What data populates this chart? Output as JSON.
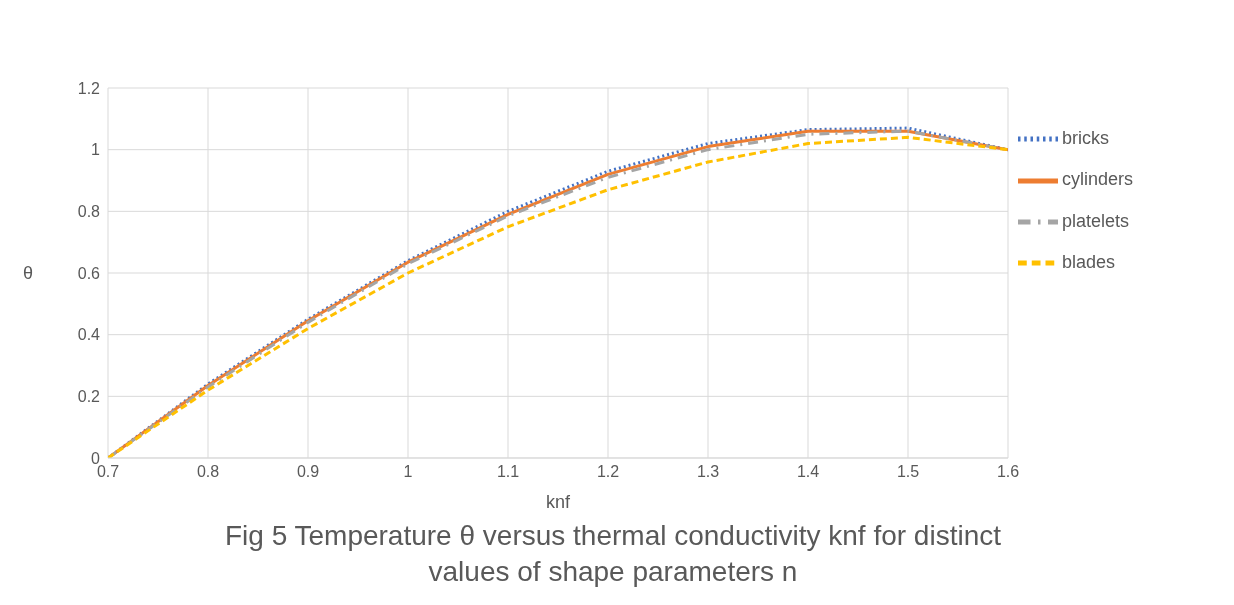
{
  "chart_data": {
    "type": "line",
    "title": "Fig 5 Temperature θ versus thermal conductivity knf for distinct values of shape parameters n",
    "xlabel": "knf",
    "ylabel": "θ",
    "x": [
      0.7,
      0.8,
      0.9,
      1.0,
      1.1,
      1.2,
      1.3,
      1.4,
      1.5,
      1.6
    ],
    "series": [
      {
        "name": "bricks",
        "color": "#4472c4",
        "line_style": "dotted",
        "values": [
          0,
          0.24,
          0.45,
          0.64,
          0.8,
          0.93,
          1.02,
          1.065,
          1.07,
          1.0
        ]
      },
      {
        "name": "cylinders",
        "color": "#ed7d31",
        "line_style": "solid",
        "values": [
          0,
          0.235,
          0.445,
          0.635,
          0.79,
          0.92,
          1.01,
          1.06,
          1.06,
          1.0
        ]
      },
      {
        "name": "platelets",
        "color": "#a5a5a5",
        "line_style": "dashed",
        "values": [
          0,
          0.23,
          0.44,
          0.63,
          0.785,
          0.91,
          1.0,
          1.05,
          1.06,
          1.0
        ]
      },
      {
        "name": "blades",
        "color": "#ffc000",
        "line_style": "dashed",
        "values": [
          0,
          0.22,
          0.42,
          0.6,
          0.75,
          0.87,
          0.96,
          1.02,
          1.04,
          1.0
        ]
      }
    ],
    "xlim": [
      0.7,
      1.6
    ],
    "xticks": [
      0.7,
      0.8,
      0.9,
      1,
      1.1,
      1.2,
      1.3,
      1.4,
      1.5,
      1.6
    ],
    "ylim": [
      0,
      1.2
    ],
    "yticks": [
      0,
      0.2,
      0.4,
      0.6,
      0.8,
      1,
      1.2
    ],
    "grid": true,
    "legend": "right",
    "marker": "none"
  }
}
